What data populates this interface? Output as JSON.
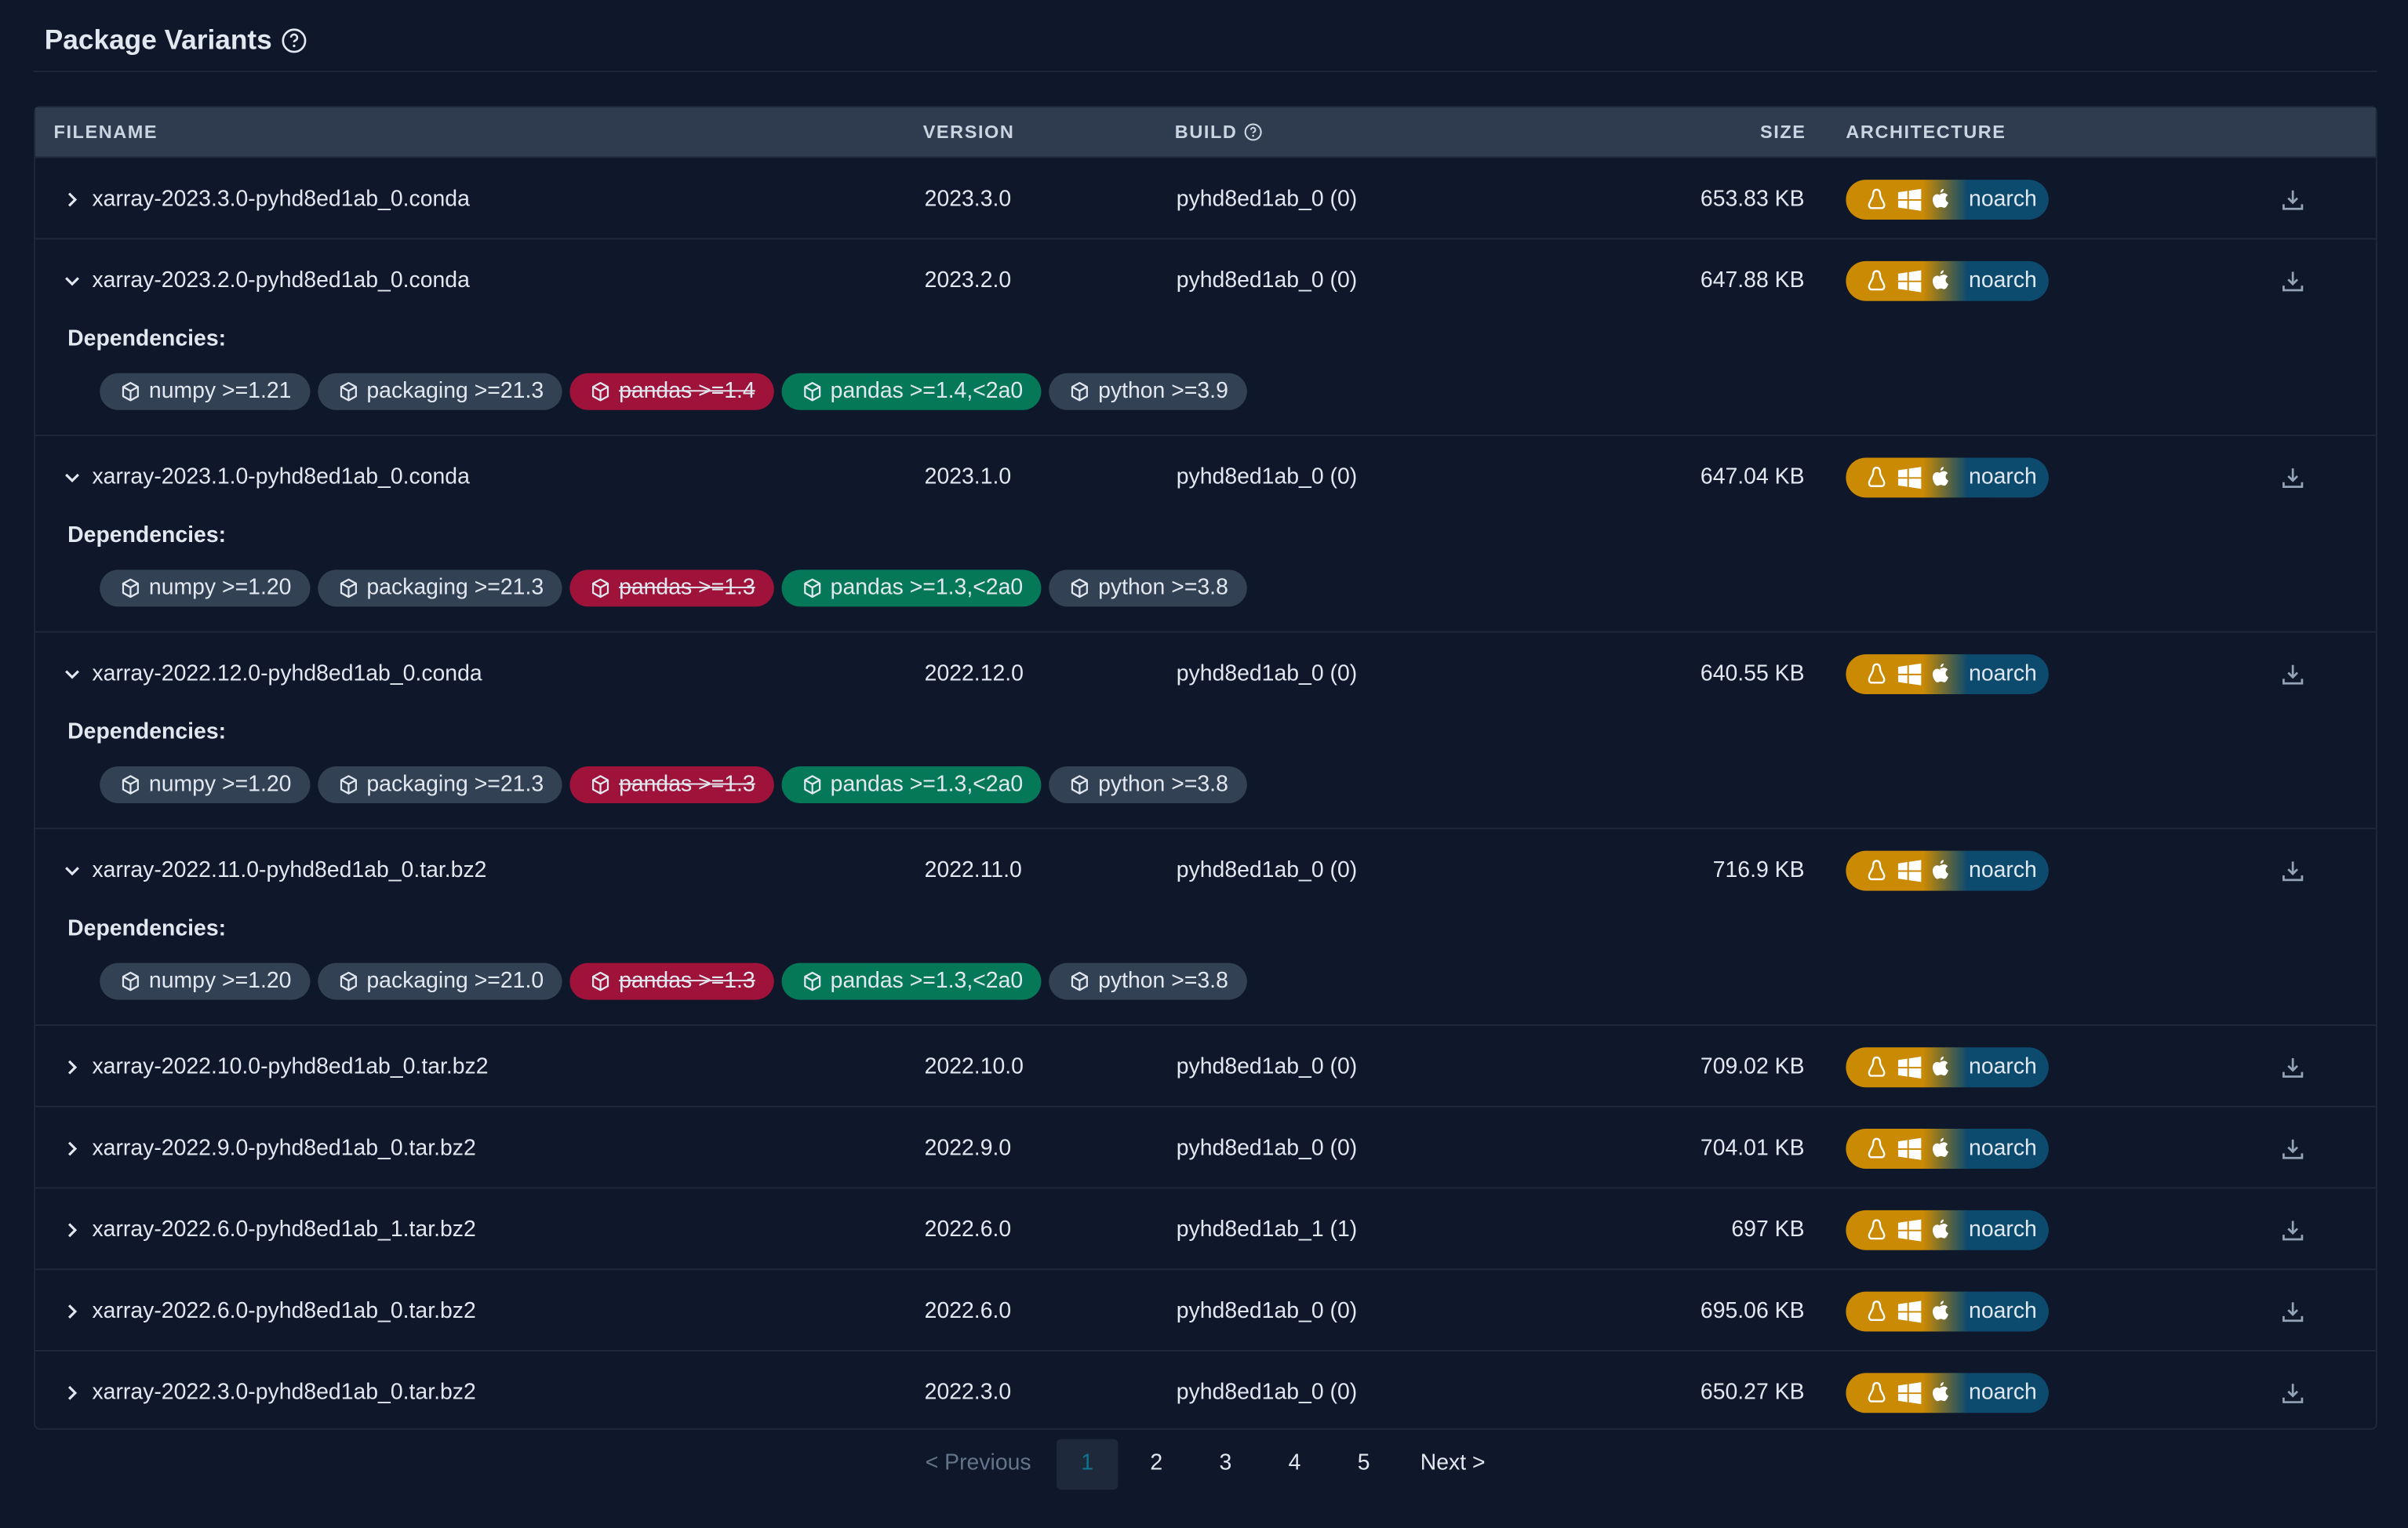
{
  "header": {
    "title": "Package Variants"
  },
  "table": {
    "columns": [
      "FILENAME",
      "VERSION",
      "BUILD",
      "SIZE",
      "ARCHITECTURE"
    ],
    "dependencies_label": "Dependencies:",
    "rows": [
      {
        "filename": "xarray-2023.3.0-pyhd8ed1ab_0.conda",
        "version": "2023.3.0",
        "build": "pyhd8ed1ab_0 (0)",
        "size": "653.83 KB",
        "arch": "noarch",
        "expanded": false
      },
      {
        "filename": "xarray-2023.2.0-pyhd8ed1ab_0.conda",
        "version": "2023.2.0",
        "build": "pyhd8ed1ab_0 (0)",
        "size": "647.88 KB",
        "arch": "noarch",
        "expanded": true,
        "dependencies": [
          {
            "text": "numpy >=1.21",
            "style": "normal"
          },
          {
            "text": "packaging >=21.3",
            "style": "normal"
          },
          {
            "text": "pandas >=1.4",
            "style": "strike"
          },
          {
            "text": "pandas >=1.4,<2a0",
            "style": "match"
          },
          {
            "text": "python >=3.9",
            "style": "normal"
          }
        ]
      },
      {
        "filename": "xarray-2023.1.0-pyhd8ed1ab_0.conda",
        "version": "2023.1.0",
        "build": "pyhd8ed1ab_0 (0)",
        "size": "647.04 KB",
        "arch": "noarch",
        "expanded": true,
        "dependencies": [
          {
            "text": "numpy >=1.20",
            "style": "normal"
          },
          {
            "text": "packaging >=21.3",
            "style": "normal"
          },
          {
            "text": "pandas >=1.3",
            "style": "strike"
          },
          {
            "text": "pandas >=1.3,<2a0",
            "style": "match"
          },
          {
            "text": "python >=3.8",
            "style": "normal"
          }
        ]
      },
      {
        "filename": "xarray-2022.12.0-pyhd8ed1ab_0.conda",
        "version": "2022.12.0",
        "build": "pyhd8ed1ab_0 (0)",
        "size": "640.55 KB",
        "arch": "noarch",
        "expanded": true,
        "dependencies": [
          {
            "text": "numpy >=1.20",
            "style": "normal"
          },
          {
            "text": "packaging >=21.3",
            "style": "normal"
          },
          {
            "text": "pandas >=1.3",
            "style": "strike"
          },
          {
            "text": "pandas >=1.3,<2a0",
            "style": "match"
          },
          {
            "text": "python >=3.8",
            "style": "normal"
          }
        ]
      },
      {
        "filename": "xarray-2022.11.0-pyhd8ed1ab_0.tar.bz2",
        "version": "2022.11.0",
        "build": "pyhd8ed1ab_0 (0)",
        "size": "716.9 KB",
        "arch": "noarch",
        "expanded": true,
        "dependencies": [
          {
            "text": "numpy >=1.20",
            "style": "normal"
          },
          {
            "text": "packaging >=21.0",
            "style": "normal"
          },
          {
            "text": "pandas >=1.3",
            "style": "strike"
          },
          {
            "text": "pandas >=1.3,<2a0",
            "style": "match"
          },
          {
            "text": "python >=3.8",
            "style": "normal"
          }
        ]
      },
      {
        "filename": "xarray-2022.10.0-pyhd8ed1ab_0.tar.bz2",
        "version": "2022.10.0",
        "build": "pyhd8ed1ab_0 (0)",
        "size": "709.02 KB",
        "arch": "noarch",
        "expanded": false
      },
      {
        "filename": "xarray-2022.9.0-pyhd8ed1ab_0.tar.bz2",
        "version": "2022.9.0",
        "build": "pyhd8ed1ab_0 (0)",
        "size": "704.01 KB",
        "arch": "noarch",
        "expanded": false
      },
      {
        "filename": "xarray-2022.6.0-pyhd8ed1ab_1.tar.bz2",
        "version": "2022.6.0",
        "build": "pyhd8ed1ab_1 (1)",
        "size": "697 KB",
        "arch": "noarch",
        "expanded": false
      },
      {
        "filename": "xarray-2022.6.0-pyhd8ed1ab_0.tar.bz2",
        "version": "2022.6.0",
        "build": "pyhd8ed1ab_0 (0)",
        "size": "695.06 KB",
        "arch": "noarch",
        "expanded": false
      },
      {
        "filename": "xarray-2022.3.0-pyhd8ed1ab_0.tar.bz2",
        "version": "2022.3.0",
        "build": "pyhd8ed1ab_0 (0)",
        "size": "650.27 KB",
        "arch": "noarch",
        "expanded": false
      }
    ]
  },
  "pagination": {
    "previous": "< Previous",
    "pages": [
      "1",
      "2",
      "3",
      "4",
      "5"
    ],
    "active": 0,
    "next": "Next >"
  }
}
